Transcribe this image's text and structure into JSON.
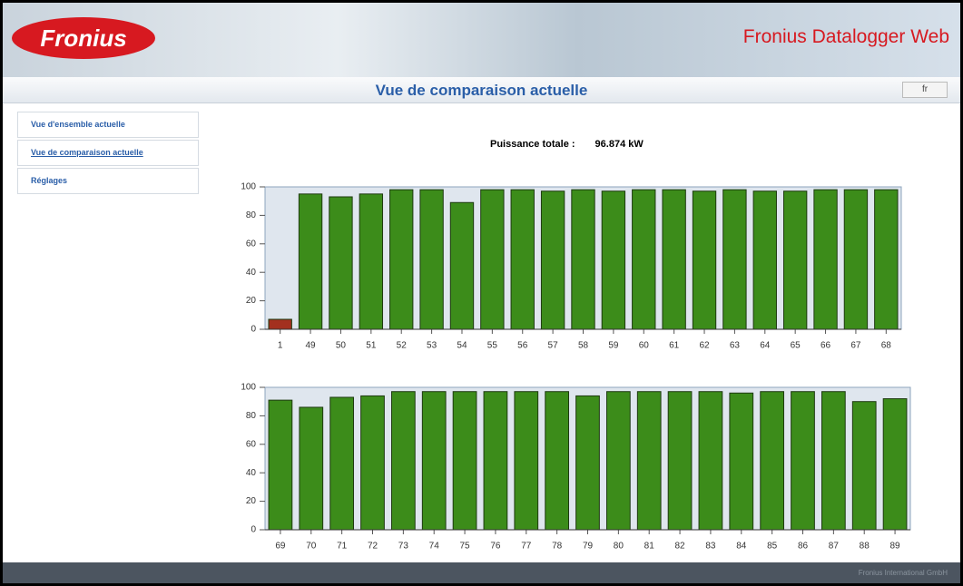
{
  "header": {
    "logo": "Fronius",
    "title": "Fronius Datalogger Web"
  },
  "page_title": "Vue de comparaison actuelle",
  "language": "fr",
  "nav": [
    "Vue d'ensemble actuelle",
    "Vue de comparaison actuelle",
    "Réglages"
  ],
  "summary": {
    "label": "Puissance totale :",
    "value": "96.874 kW"
  },
  "chart_data": [
    {
      "type": "bar",
      "categories": [
        "1",
        "49",
        "50",
        "51",
        "52",
        "53",
        "54",
        "55",
        "56",
        "57",
        "58",
        "59",
        "60",
        "61",
        "62",
        "63",
        "64",
        "65",
        "66",
        "67",
        "68"
      ],
      "values": [
        7,
        95,
        93,
        95,
        98,
        98,
        89,
        98,
        98,
        97,
        98,
        97,
        98,
        98,
        97,
        98,
        97,
        97,
        98,
        98,
        98
      ],
      "colors": [
        "#a3301f",
        "#3c8c1a",
        "#3c8c1a",
        "#3c8c1a",
        "#3c8c1a",
        "#3c8c1a",
        "#3c8c1a",
        "#3c8c1a",
        "#3c8c1a",
        "#3c8c1a",
        "#3c8c1a",
        "#3c8c1a",
        "#3c8c1a",
        "#3c8c1a",
        "#3c8c1a",
        "#3c8c1a",
        "#3c8c1a",
        "#3c8c1a",
        "#3c8c1a",
        "#3c8c1a",
        "#3c8c1a"
      ],
      "ylim": [
        0,
        100
      ],
      "yticks": [
        0,
        20,
        40,
        60,
        80,
        100
      ]
    },
    {
      "type": "bar",
      "categories": [
        "69",
        "70",
        "71",
        "72",
        "73",
        "74",
        "75",
        "76",
        "77",
        "78",
        "79",
        "80",
        "81",
        "82",
        "83",
        "84",
        "85",
        "86",
        "87",
        "88",
        "89"
      ],
      "values": [
        91,
        86,
        93,
        94,
        97,
        97,
        97,
        97,
        97,
        97,
        94,
        97,
        97,
        97,
        97,
        96,
        97,
        97,
        97,
        90,
        92
      ],
      "colors": [
        "#3c8c1a",
        "#3c8c1a",
        "#3c8c1a",
        "#3c8c1a",
        "#3c8c1a",
        "#3c8c1a",
        "#3c8c1a",
        "#3c8c1a",
        "#3c8c1a",
        "#3c8c1a",
        "#3c8c1a",
        "#3c8c1a",
        "#3c8c1a",
        "#3c8c1a",
        "#3c8c1a",
        "#3c8c1a",
        "#3c8c1a",
        "#3c8c1a",
        "#3c8c1a",
        "#3c8c1a",
        "#3c8c1a"
      ],
      "ylim": [
        0,
        100
      ],
      "yticks": [
        0,
        20,
        40,
        60,
        80,
        100
      ]
    }
  ],
  "footer": "Fronius International GmbH"
}
